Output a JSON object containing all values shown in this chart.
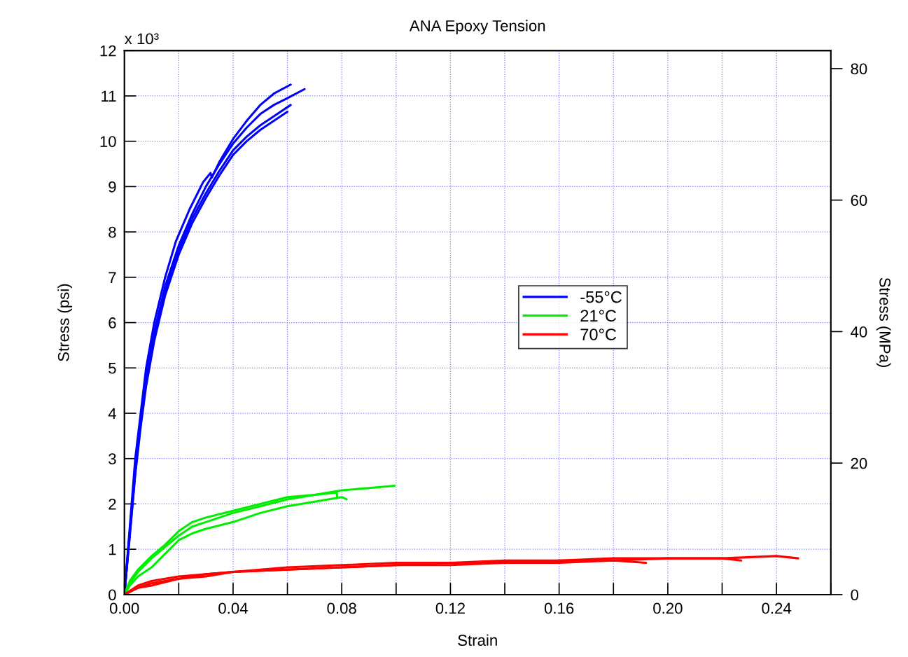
{
  "chart_data": {
    "type": "line",
    "title": "ANA Epoxy Tension",
    "xlabel": "Strain",
    "ylabel": "Stress (psi)",
    "y2label": "Stress (MPa)",
    "xlim": [
      0,
      0.26
    ],
    "xticks": [
      {
        "value": 0,
        "label": "0.00"
      },
      {
        "value": 0.02,
        "label": null
      },
      {
        "value": 0.04,
        "label": "0.04"
      },
      {
        "value": 0.06,
        "label": null
      },
      {
        "value": 0.08,
        "label": "0.08"
      },
      {
        "value": 0.1,
        "label": null
      },
      {
        "value": 0.12,
        "label": "0.12"
      },
      {
        "value": 0.14,
        "label": null
      },
      {
        "value": 0.16,
        "label": "0.16"
      },
      {
        "value": 0.18,
        "label": null
      },
      {
        "value": 0.2,
        "label": "0.20"
      },
      {
        "value": 0.22,
        "label": null
      },
      {
        "value": 0.24,
        "label": "0.24"
      },
      {
        "value": 0.26,
        "label": null
      }
    ],
    "ylim": [
      0,
      12
    ],
    "yticks": [
      0,
      1,
      2,
      3,
      4,
      5,
      6,
      7,
      8,
      9,
      10,
      11,
      12
    ],
    "annotations": [
      "x 10³"
    ],
    "y2lim": [
      0,
      82.74
    ],
    "y2ticks": [
      0,
      20,
      40,
      60,
      80
    ],
    "grid": true,
    "legend": "center right",
    "line_style": "solid",
    "marker": "none",
    "series": [
      {
        "name": "-55°C",
        "color": "#0000ff",
        "x": [
          0,
          0.002,
          0.004,
          0.006,
          0.008,
          0.011,
          0.015,
          0.019,
          0.024,
          0.029,
          0.0317,
          0.0322,
          0.035,
          0.04,
          0.045,
          0.05,
          0.055,
          0.0612
        ],
        "values": [
          0,
          1.5,
          3.0,
          4.0,
          5.0,
          6.0,
          7.0,
          7.8,
          8.5,
          9.1,
          9.3,
          9.2,
          9.55,
          10.05,
          10.45,
          10.8,
          11.05,
          11.25
        ]
      },
      {
        "color": "#0000ff",
        "x": [
          0,
          0.002,
          0.004,
          0.006,
          0.008,
          0.011,
          0.015,
          0.02,
          0.025,
          0.03,
          0.035,
          0.04,
          0.045,
          0.05,
          0.055,
          0.06,
          0.0663
        ],
        "values": [
          0,
          1.4,
          2.8,
          3.9,
          4.8,
          5.8,
          6.8,
          7.7,
          8.4,
          9.0,
          9.5,
          9.95,
          10.3,
          10.6,
          10.8,
          10.95,
          11.15
        ]
      },
      {
        "color": "#0000ff",
        "x": [
          0,
          0.002,
          0.004,
          0.006,
          0.008,
          0.011,
          0.015,
          0.02,
          0.025,
          0.03,
          0.035,
          0.04,
          0.045,
          0.05,
          0.055,
          0.0612
        ],
        "values": [
          0,
          1.35,
          2.7,
          3.8,
          4.7,
          5.7,
          6.7,
          7.6,
          8.3,
          8.85,
          9.35,
          9.8,
          10.1,
          10.35,
          10.55,
          10.8
        ]
      },
      {
        "color": "#0000ff",
        "x": [
          0,
          0.002,
          0.004,
          0.006,
          0.008,
          0.011,
          0.015,
          0.02,
          0.025,
          0.03,
          0.035,
          0.04,
          0.045,
          0.05,
          0.055,
          0.06
        ],
        "values": [
          0,
          1.3,
          2.65,
          3.7,
          4.6,
          5.6,
          6.6,
          7.5,
          8.2,
          8.75,
          9.25,
          9.7,
          10.0,
          10.25,
          10.45,
          10.65
        ]
      },
      {
        "name": "21°C",
        "color": "#00ee00",
        "x": [
          0,
          0.002,
          0.005,
          0.01,
          0.015,
          0.02,
          0.025,
          0.03,
          0.04,
          0.05,
          0.06,
          0.07,
          0.08,
          0.09,
          0.0994
        ],
        "values": [
          0,
          0.3,
          0.55,
          0.85,
          1.1,
          1.4,
          1.6,
          1.7,
          1.85,
          2.0,
          2.15,
          2.2,
          2.3,
          2.35,
          2.4
        ]
      },
      {
        "color": "#00ee00",
        "x": [
          0,
          0.002,
          0.005,
          0.01,
          0.015,
          0.02,
          0.025,
          0.03,
          0.04,
          0.05,
          0.06,
          0.07,
          0.0782,
          0.0783
        ],
        "values": [
          0,
          0.25,
          0.5,
          0.8,
          1.05,
          1.3,
          1.5,
          1.6,
          1.8,
          1.95,
          2.1,
          2.2,
          2.25,
          2.15
        ]
      },
      {
        "color": "#00ee00",
        "x": [
          0,
          0.002,
          0.005,
          0.01,
          0.015,
          0.02,
          0.025,
          0.03,
          0.04,
          0.05,
          0.06,
          0.07,
          0.08,
          0.0818
        ],
        "values": [
          0,
          0.2,
          0.4,
          0.6,
          0.9,
          1.2,
          1.35,
          1.45,
          1.6,
          1.8,
          1.95,
          2.05,
          2.15,
          2.1
        ]
      },
      {
        "name": "70°C",
        "color": "#ff0000",
        "x": [
          0,
          0.005,
          0.01,
          0.02,
          0.03,
          0.04,
          0.06,
          0.08,
          0.1,
          0.12,
          0.14,
          0.16,
          0.18,
          0.2,
          0.22,
          0.24,
          0.248
        ],
        "values": [
          0,
          0.2,
          0.3,
          0.4,
          0.45,
          0.5,
          0.6,
          0.65,
          0.7,
          0.7,
          0.75,
          0.75,
          0.8,
          0.8,
          0.8,
          0.85,
          0.8
        ]
      },
      {
        "color": "#ff0000",
        "x": [
          0,
          0.005,
          0.01,
          0.02,
          0.03,
          0.04,
          0.06,
          0.08,
          0.1,
          0.12,
          0.14,
          0.16,
          0.18,
          0.2,
          0.22,
          0.227
        ],
        "values": [
          0,
          0.15,
          0.25,
          0.35,
          0.45,
          0.5,
          0.55,
          0.6,
          0.65,
          0.7,
          0.7,
          0.75,
          0.75,
          0.8,
          0.8,
          0.75
        ]
      },
      {
        "color": "#ff0000",
        "x": [
          0,
          0.005,
          0.01,
          0.02,
          0.03,
          0.04,
          0.06,
          0.08,
          0.1,
          0.12,
          0.14,
          0.16,
          0.18,
          0.192
        ],
        "values": [
          0,
          0.15,
          0.2,
          0.35,
          0.4,
          0.5,
          0.55,
          0.6,
          0.65,
          0.65,
          0.7,
          0.7,
          0.75,
          0.7
        ]
      }
    ]
  }
}
